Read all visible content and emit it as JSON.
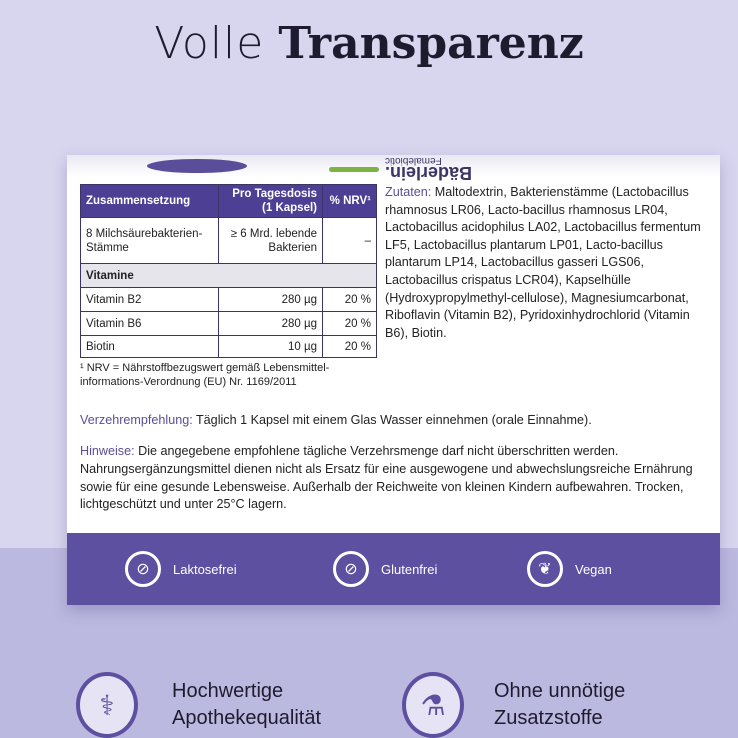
{
  "title": {
    "light": "Volle",
    "bold": "Transparenz"
  },
  "brand": {
    "name": "Bäderlein.",
    "sub": "Femalebiotic"
  },
  "table": {
    "headers": [
      "Zusammensetzung",
      "Pro Tagesdosis (1 Kapsel)",
      "% NRV¹"
    ],
    "rows": [
      {
        "name": "8 Milchsäurebakterien-Stämme",
        "dose": "≥ 6 Mrd. lebende Bakterien",
        "nrv": "–"
      },
      {
        "section": "Vitamine"
      },
      {
        "name": "Vitamin B2",
        "dose": "280 µg",
        "nrv": "20 %"
      },
      {
        "name": "Vitamin B6",
        "dose": "280 µg",
        "nrv": "20 %"
      },
      {
        "name": "Biotin",
        "dose": "10 µg",
        "nrv": "20 %"
      }
    ],
    "footnote": "¹ NRV = Nährstoffbezugswert gemäß Lebensmittel-informations-Verordnung (EU) Nr. 1169/2011"
  },
  "zutaten": {
    "label": "Zutaten:",
    "text": " Maltodextrin, Bakterienstämme (Lactobacillus rhamnosus LR06, Lacto-bacillus rhamnosus LR04, Lactobacillus acidophilus LA02, Lactobacillus fermentum LF5, Lactobacillus plantarum LP01, Lacto-bacillus plantarum LP14, Lactobacillus gasseri LGS06, Lactobacillus crispatus LCR04), Kapselhülle (Hydroxypropylmethyl-cellulose), Magnesiumcarbonat, Riboflavin (Vitamin B2), Pyridoxinhydrochlorid (Vitamin B6), Biotin."
  },
  "verzehr": {
    "label": "Verzehrempfehlung:",
    "text": " Täglich 1 Kapsel mit einem Glas Wasser einnehmen (orale Einnahme)."
  },
  "hinweise": {
    "label": "Hinweise:",
    "text": " Die angegebene empfohlene tägliche Verzehrsmenge darf nicht überschritten werden. Nahrungsergänzungsmittel dienen nicht als Ersatz für eine ausgewogene und abwechslungsreiche Ernährung sowie für eine gesunde Lebensweise. Außerhalb der Reichweite von kleinen Kindern aufbewahren. Trocken, lichtgeschützt und unter 25°C lagern."
  },
  "badges": [
    {
      "label": "Laktosefrei",
      "icon": "no-milk-icon"
    },
    {
      "label": "Glutenfrei",
      "icon": "no-wheat-icon"
    },
    {
      "label": "Vegan",
      "icon": "leaf-icon"
    }
  ],
  "features": [
    {
      "line1": "Hochwertige",
      "line2": "Apothekequalität",
      "icon": "caduceus-icon"
    },
    {
      "line1": "Ohne unnötige",
      "line2": "Zusatzstoffe",
      "icon": "no-flask-icon"
    }
  ],
  "colors": {
    "purple": "#5e50a0",
    "header": "#4d4094",
    "background": "#d8d5ef"
  }
}
